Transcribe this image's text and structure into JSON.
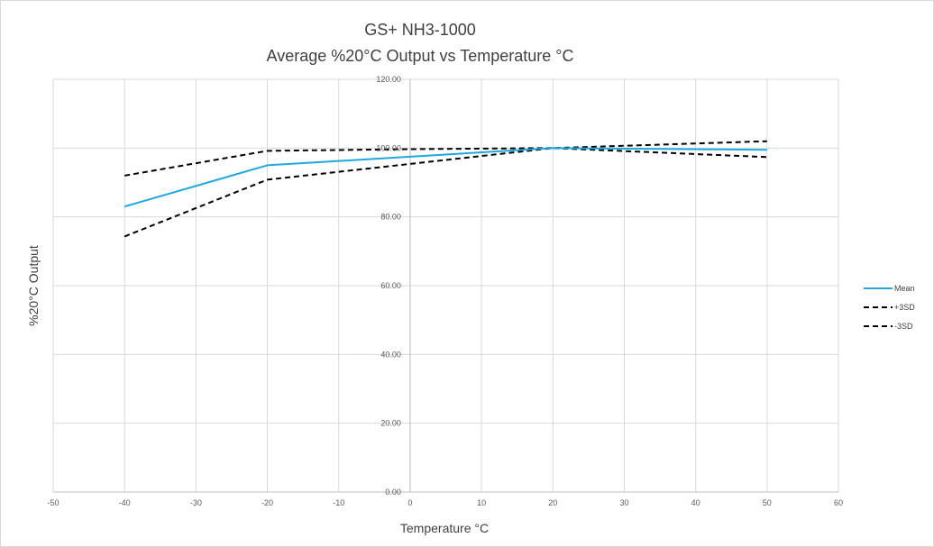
{
  "chart_data": {
    "type": "line",
    "title_line1": "GS+ NH3-1000",
    "title_line2": "Average %20°C Output vs Temperature °C",
    "xlabel": "Temperature °C",
    "ylabel": "%20°C Output",
    "xlim": [
      -50,
      60
    ],
    "ylim": [
      0,
      120
    ],
    "x_ticks": [
      "-50",
      "-40",
      "-30",
      "-20",
      "-10",
      "0",
      "10",
      "20",
      "30",
      "40",
      "50",
      "60"
    ],
    "y_ticks": [
      "0.00",
      "20.00",
      "40.00",
      "60.00",
      "80.00",
      "100.00",
      "120.00"
    ],
    "grid": true,
    "legend_position": "right",
    "series": [
      {
        "name": "Mean",
        "color": "#1fa8e0",
        "dash": "solid",
        "x": [
          -40,
          -20,
          0,
          20,
          50
        ],
        "y": [
          83.0,
          95.0,
          97.5,
          100.0,
          99.5
        ]
      },
      {
        "name": "+3SD",
        "color": "#000000",
        "dash": "dashed",
        "x": [
          -40,
          -20,
          0,
          20,
          50
        ],
        "y": [
          92.0,
          99.2,
          99.7,
          100.0,
          102.0
        ]
      },
      {
        "name": "-3SD",
        "color": "#000000",
        "dash": "dashed",
        "x": [
          -40,
          -20,
          0,
          20,
          50
        ],
        "y": [
          74.3,
          90.8,
          95.4,
          100.0,
          97.4
        ]
      }
    ]
  }
}
